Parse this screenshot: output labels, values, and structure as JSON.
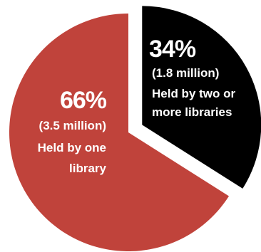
{
  "chart_data": {
    "type": "pie",
    "slices": [
      {
        "percent_label": "34%",
        "value": 34,
        "count_label": "(1.8 million)",
        "desc_lines": [
          "Held by two or",
          "more libraries"
        ],
        "color": "#000000",
        "exploded": true
      },
      {
        "percent_label": "66%",
        "value": 66,
        "count_label": "(3.5 million)",
        "desc_lines": [
          "Held by one",
          "library"
        ],
        "color": "#c0433b",
        "exploded": false
      }
    ]
  }
}
